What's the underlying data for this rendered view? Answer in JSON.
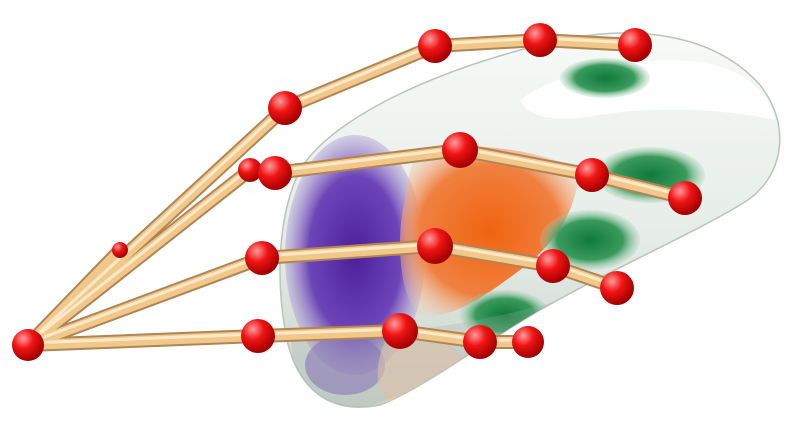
{
  "scene": {
    "subject": "hand-skeleton-over-grasped-object",
    "colors": {
      "background": "#ffffff",
      "object_base": "#e9efe9",
      "object_shadow": "#c8d3cb",
      "region_purple": "#5a2ea6",
      "region_orange": "#ee6a12",
      "region_green": "#137a3c",
      "bone": "#f2c88a",
      "bone_edge": "#b08555",
      "joint": "#ee1111",
      "joint_highlight": "#ff9b9b"
    }
  }
}
